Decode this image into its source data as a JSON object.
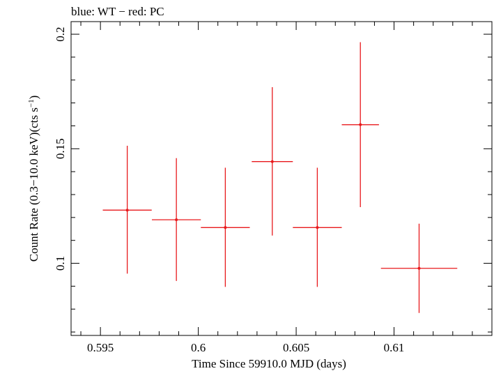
{
  "chart_data": {
    "type": "scatter",
    "title": "blue: WT − red: PC",
    "xlabel": "Time Since 59910.0 MJD (days)",
    "ylabel_parts": {
      "main": "Count Rate (0.3−10.0 keV)(cts s",
      "superscript": "−1",
      "close": ")"
    },
    "xlim": [
      0.5935,
      0.615
    ],
    "ylim": [
      0.0685,
      0.2055
    ],
    "xticks": [
      0.595,
      0.6,
      0.605,
      0.61
    ],
    "xtick_labels": [
      "0.595",
      "0.6",
      "0.605",
      "0.61"
    ],
    "yticks": [
      0.1,
      0.15,
      0.2
    ],
    "ytick_labels": [
      "0.1",
      "0.15",
      "0.2"
    ],
    "grid": false,
    "series": [
      {
        "color": "#e8191c",
        "points": [
          {
            "x": 0.59637,
            "xerr": 0.00125,
            "y": 0.1232,
            "ylo": 0.0955,
            "yhi": 0.1513
          },
          {
            "x": 0.59888,
            "xerr": 0.00125,
            "y": 0.119,
            "ylo": 0.0923,
            "yhi": 0.1459
          },
          {
            "x": 0.60138,
            "xerr": 0.00125,
            "y": 0.1156,
            "ylo": 0.0897,
            "yhi": 0.1417
          },
          {
            "x": 0.60378,
            "xerr": 0.00105,
            "y": 0.1444,
            "ylo": 0.1121,
            "yhi": 0.1769
          },
          {
            "x": 0.60608,
            "xerr": 0.00125,
            "y": 0.1156,
            "ylo": 0.0897,
            "yhi": 0.1417
          },
          {
            "x": 0.60828,
            "xerr": 0.00095,
            "y": 0.1605,
            "ylo": 0.1245,
            "yhi": 0.1965
          },
          {
            "x": 0.61128,
            "xerr": 0.00195,
            "y": 0.0978,
            "ylo": 0.0783,
            "yhi": 0.1173
          }
        ]
      }
    ]
  }
}
